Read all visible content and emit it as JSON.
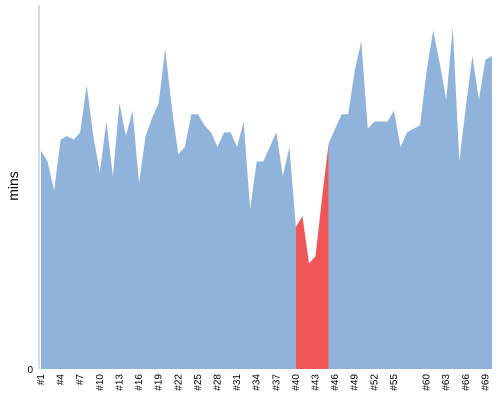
{
  "chart_data": {
    "type": "area",
    "xlabel": "",
    "ylabel": "mins",
    "ylim": [
      0,
      100
    ],
    "y_tick_labels": [
      "0"
    ],
    "grid": false,
    "legend": "none",
    "colors": {
      "normal": "#8fb3db",
      "highlight": "#f05656",
      "axis": "#bbbbbb"
    },
    "highlight_range": {
      "from": "#40",
      "to": "#45"
    },
    "x_tick_labels": [
      "#1",
      "#4",
      "#7",
      "#10",
      "#13",
      "#16",
      "#19",
      "#22",
      "#25",
      "#28",
      "#31",
      "#34",
      "#37",
      "#40",
      "#43",
      "#46",
      "#49",
      "#52",
      "#55",
      "#60",
      "#63",
      "#66",
      "#69"
    ],
    "x": [
      "#1",
      "#2",
      "#3",
      "#4",
      "#5",
      "#6",
      "#7",
      "#8",
      "#9",
      "#10",
      "#11",
      "#12",
      "#13",
      "#14",
      "#15",
      "#16",
      "#17",
      "#18",
      "#19",
      "#20",
      "#21",
      "#22",
      "#23",
      "#24",
      "#25",
      "#26",
      "#27",
      "#28",
      "#29",
      "#30",
      "#31",
      "#32",
      "#33",
      "#34",
      "#35",
      "#36",
      "#37",
      "#38",
      "#39",
      "#40",
      "#41",
      "#42",
      "#43",
      "#44",
      "#45",
      "#46",
      "#47",
      "#48",
      "#49",
      "#50",
      "#51",
      "#52",
      "#53",
      "#54",
      "#55",
      "#56",
      "#57",
      "#58",
      "#59",
      "#60",
      "#61",
      "#62",
      "#63",
      "#64",
      "#65",
      "#66",
      "#67",
      "#68",
      "#69",
      "#70"
    ],
    "values": [
      60,
      57,
      49,
      63,
      64,
      63,
      65,
      78,
      64,
      54,
      68,
      53,
      73,
      64,
      71,
      51,
      64,
      69,
      73,
      88,
      72,
      59,
      61,
      70,
      70,
      67,
      65,
      61,
      65,
      65,
      61,
      68,
      44,
      57,
      57,
      61,
      65,
      53,
      61,
      39,
      42,
      29,
      31,
      47,
      62,
      66,
      70,
      70,
      82,
      90,
      66,
      68,
      68,
      68,
      71,
      61,
      65,
      66,
      67,
      82,
      93,
      84,
      74,
      94,
      57,
      72,
      86,
      74,
      85,
      86
    ]
  }
}
